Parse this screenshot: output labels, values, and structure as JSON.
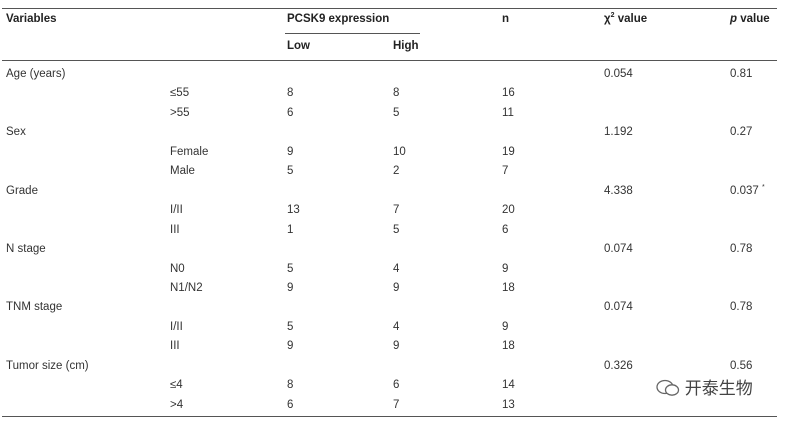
{
  "header": {
    "variables": "Variables",
    "group": "PCSK9 expression",
    "low": "Low",
    "high": "High",
    "n": "n",
    "chi_symbol": "χ",
    "chi_sup": "2",
    "chi_rest": "value",
    "p_symbol": "p",
    "p_rest": "value"
  },
  "groups": [
    {
      "name": "Age (years)",
      "chi": "0.054",
      "p": "0.81",
      "levels": [
        {
          "label": "≤55",
          "low": "8",
          "high": "8",
          "n": "16"
        },
        {
          "label": ">55",
          "low": "6",
          "high": "5",
          "n": "11"
        }
      ]
    },
    {
      "name": "Sex",
      "chi": "1.192",
      "p": "0.27",
      "levels": [
        {
          "label": "Female",
          "low": "9",
          "high": "10",
          "n": "19"
        },
        {
          "label": "Male",
          "low": "5",
          "high": "2",
          "n": "7"
        }
      ]
    },
    {
      "name": "Grade",
      "chi": "4.338",
      "p": "0.037",
      "p_mark": "*",
      "levels": [
        {
          "label": "I/II",
          "low": "13",
          "high": "7",
          "n": "20"
        },
        {
          "label": "III",
          "low": "1",
          "high": "5",
          "n": "6"
        }
      ]
    },
    {
      "name": "N stage",
      "chi": "0.074",
      "p": "0.78",
      "levels": [
        {
          "label": "N0",
          "low": "5",
          "high": "4",
          "n": "9"
        },
        {
          "label": "N1/N2",
          "low": "9",
          "high": "9",
          "n": "18"
        }
      ]
    },
    {
      "name": "TNM stage",
      "chi": "0.074",
      "p": "0.78",
      "levels": [
        {
          "label": "I/II",
          "low": "5",
          "high": "4",
          "n": "9"
        },
        {
          "label": "III",
          "low": "9",
          "high": "9",
          "n": "18"
        }
      ]
    },
    {
      "name": "Tumor size (cm)",
      "chi": "0.326",
      "p": "0.56",
      "levels": [
        {
          "label": "≤4",
          "low": "8",
          "high": "6",
          "n": "14"
        },
        {
          "label": ">4",
          "low": "6",
          "high": "7",
          "n": "13"
        }
      ]
    }
  ],
  "watermark": "开泰生物"
}
